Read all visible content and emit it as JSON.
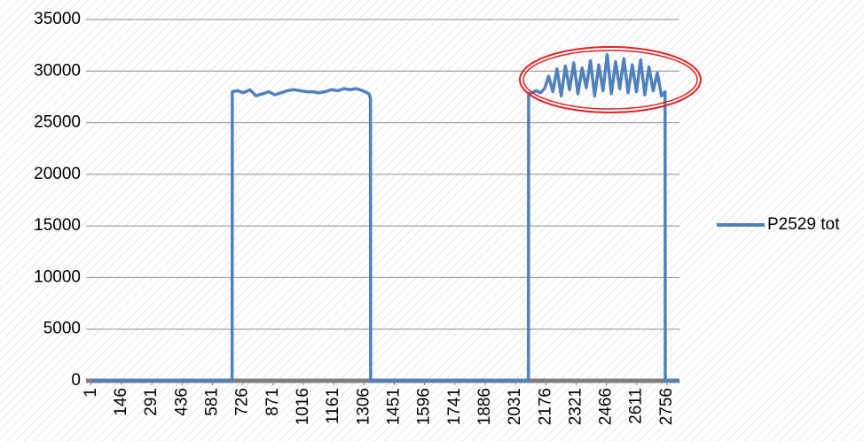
{
  "chart_data": {
    "type": "line",
    "xticks": [
      1,
      146,
      291,
      436,
      581,
      726,
      871,
      1016,
      1161,
      1306,
      1451,
      1596,
      1741,
      1886,
      2031,
      2176,
      2321,
      2466,
      2611,
      2756
    ],
    "xlim": [
      -24,
      2816
    ],
    "ylim": [
      0,
      35000
    ],
    "yticks": [
      0,
      5000,
      10000,
      15000,
      20000,
      25000,
      30000,
      35000
    ],
    "grid": true,
    "legend": "right",
    "series": [
      {
        "name": "P2529 tot",
        "color": "#4f81bd",
        "x": [
          1,
          675,
          676,
          700,
          730,
          760,
          790,
          820,
          850,
          880,
          910,
          940,
          970,
          1000,
          1030,
          1060,
          1090,
          1120,
          1150,
          1180,
          1210,
          1240,
          1270,
          1300,
          1330,
          1337,
          1338,
          1400,
          2093,
          2094,
          2110,
          2130,
          2150,
          2170,
          2190,
          2210,
          2230,
          2250,
          2270,
          2290,
          2310,
          2330,
          2350,
          2370,
          2390,
          2410,
          2430,
          2450,
          2470,
          2490,
          2510,
          2530,
          2550,
          2570,
          2590,
          2610,
          2630,
          2650,
          2670,
          2690,
          2710,
          2730,
          2747,
          2748,
          2815
        ],
        "values": [
          0,
          0,
          28000,
          28100,
          27900,
          28200,
          27600,
          27800,
          28000,
          27700,
          27900,
          28100,
          28200,
          28100,
          28000,
          28000,
          27900,
          28000,
          28200,
          28100,
          28300,
          28200,
          28300,
          28100,
          27800,
          27400,
          0,
          0,
          0,
          27800,
          27900,
          28100,
          27900,
          28300,
          29500,
          28000,
          30200,
          27600,
          30500,
          28200,
          30800,
          27800,
          30300,
          28400,
          31000,
          27600,
          30600,
          28100,
          31600,
          27800,
          30900,
          28300,
          31200,
          27900,
          30600,
          28000,
          31100,
          27700,
          30400,
          28100,
          29800,
          27600,
          28000,
          0,
          0
        ]
      }
    ]
  }
}
